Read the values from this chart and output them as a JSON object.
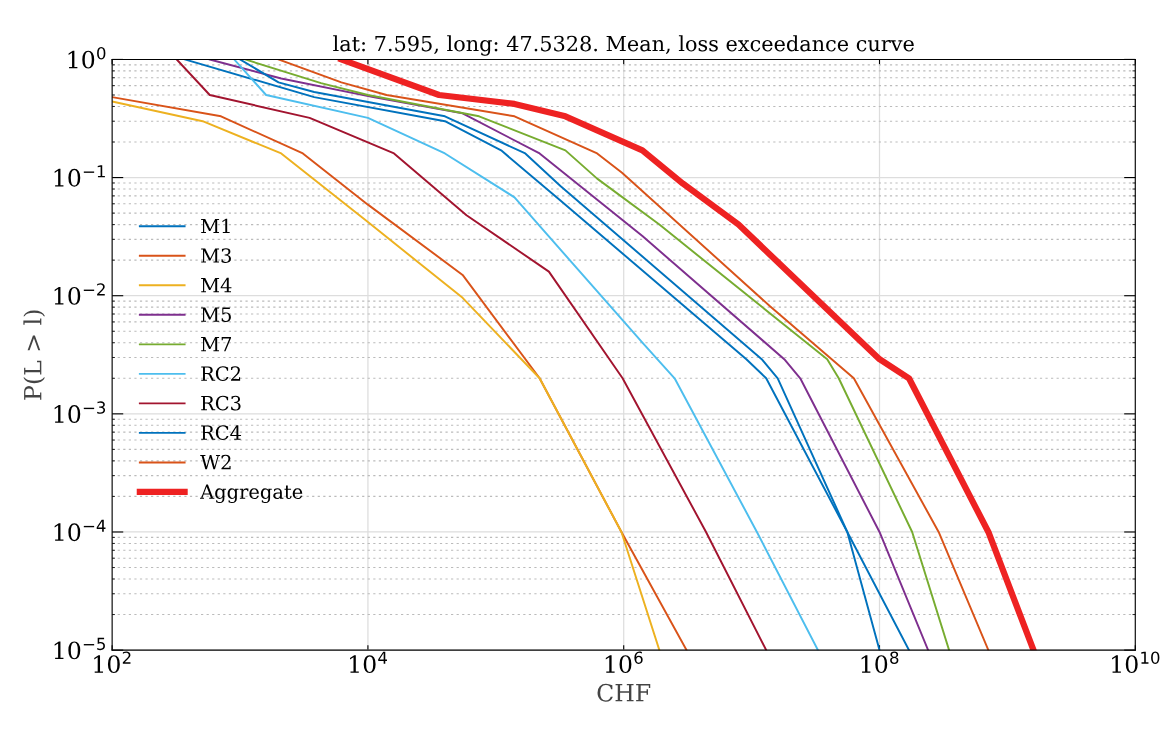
{
  "chart_data": {
    "type": "line",
    "title": "lat: 7.595, long: 47.5328. Mean, loss exceedance curve",
    "xlabel": "CHF",
    "ylabel": "P(L > l)",
    "log": "xy",
    "grid": true,
    "legend": "left",
    "line_style": "solid",
    "marker": "none",
    "xlim": [
      100,
      10000000000
    ],
    "ylim": [
      1e-05,
      1
    ],
    "xticks": [
      {
        "value": 100,
        "label": "10$^{2}$"
      },
      {
        "value": 10000,
        "label": "10$^{4}$"
      },
      {
        "value": 1000000,
        "label": "10$^{6}$"
      },
      {
        "value": 100000000,
        "label": "10$^{8}$"
      },
      {
        "value": 10000000000,
        "label": "10$^{10}$"
      }
    ],
    "yticks": [
      {
        "value": 1e-05,
        "label": "10$^{−5}$"
      },
      {
        "value": 0.0001,
        "label": "10$^{−4}$"
      },
      {
        "value": 0.001,
        "label": "10$^{−3}$"
      },
      {
        "value": 0.01,
        "label": "10$^{−2}$"
      },
      {
        "value": 0.1,
        "label": "10$^{−1}$"
      },
      {
        "value": 1,
        "label": "10$^{0}$"
      }
    ],
    "series": [
      {
        "name": "M1",
        "color": "#0072bd",
        "x": [
          370,
          3800,
          40000,
          110000,
          320000,
          9100000,
          13000000,
          56000000,
          170000000
        ],
        "values": [
          1,
          0.48,
          0.3,
          0.17,
          0.064,
          0.0029,
          0.002,
          0.0001,
          1e-05
        ]
      },
      {
        "name": "M3",
        "color": "#d95319",
        "x": [
          100,
          710,
          3100,
          10000,
          55000,
          220000,
          960000,
          3100000
        ],
        "values": [
          0.48,
          0.33,
          0.16,
          0.059,
          0.015,
          0.002,
          0.0001,
          1e-05
        ]
      },
      {
        "name": "M4",
        "color": "#edb120",
        "x": [
          100,
          510,
          2100,
          10000,
          55000,
          220000,
          960000,
          1900000
        ],
        "values": [
          0.44,
          0.3,
          0.16,
          0.042,
          0.0096,
          0.002,
          0.0001,
          1e-05
        ]
      },
      {
        "name": "M5",
        "color": "#7e2f8e",
        "x": [
          580,
          2100,
          11000,
          55000,
          220000,
          1400000,
          18000000,
          24000000,
          100000000,
          240000000
        ],
        "values": [
          1,
          0.69,
          0.48,
          0.35,
          0.16,
          0.032,
          0.0029,
          0.002,
          0.0001,
          1e-05
        ]
      },
      {
        "name": "M7",
        "color": "#77ac30",
        "x": [
          1100,
          4300,
          10000,
          74000,
          350000,
          620000,
          1900000,
          39000000,
          48000000,
          180000000,
          350000000
        ],
        "values": [
          1,
          0.63,
          0.5,
          0.33,
          0.17,
          0.098,
          0.04,
          0.0029,
          0.002,
          0.0001,
          1e-05
        ]
      },
      {
        "name": "RC2",
        "color": "#4dbeee",
        "x": [
          900,
          1600,
          10000,
          40000,
          140000,
          1400000,
          2500000,
          11000000,
          33000000
        ],
        "values": [
          1,
          0.5,
          0.32,
          0.16,
          0.068,
          0.004,
          0.002,
          0.0001,
          1e-05
        ]
      },
      {
        "name": "RC3",
        "color": "#a2142f",
        "x": [
          320,
          580,
          3500,
          16000,
          59000,
          260000,
          980000,
          4400000,
          13000000
        ],
        "values": [
          1,
          0.5,
          0.32,
          0.16,
          0.048,
          0.016,
          0.002,
          0.0001,
          1e-05
        ]
      },
      {
        "name": "RC4",
        "color": "#0072bd",
        "x": [
          1000,
          2000,
          3800,
          40000,
          170000,
          320000,
          12000000,
          16000000,
          56000000,
          100000000
        ],
        "values": [
          1,
          0.64,
          0.53,
          0.33,
          0.16,
          0.085,
          0.0029,
          0.002,
          0.0001,
          1e-05
        ]
      },
      {
        "name": "W2",
        "color": "#d95319",
        "x": [
          2000,
          6200,
          14000,
          140000,
          620000,
          970000,
          14000000,
          63000000,
          290000000,
          710000000
        ],
        "values": [
          1,
          0.64,
          0.5,
          0.33,
          0.16,
          0.11,
          0.0081,
          0.002,
          0.0001,
          1e-05
        ]
      },
      {
        "name": "Aggregate",
        "color": "#ee2222",
        "x": [
          6200,
          36000,
          140000,
          350000,
          1400000,
          2900000,
          7900000,
          100000000,
          170000000,
          710000000,
          1600000000
        ],
        "values": [
          1,
          0.5,
          0.42,
          0.33,
          0.17,
          0.089,
          0.04,
          0.0029,
          0.002,
          0.0001,
          1e-05
        ]
      }
    ]
  }
}
